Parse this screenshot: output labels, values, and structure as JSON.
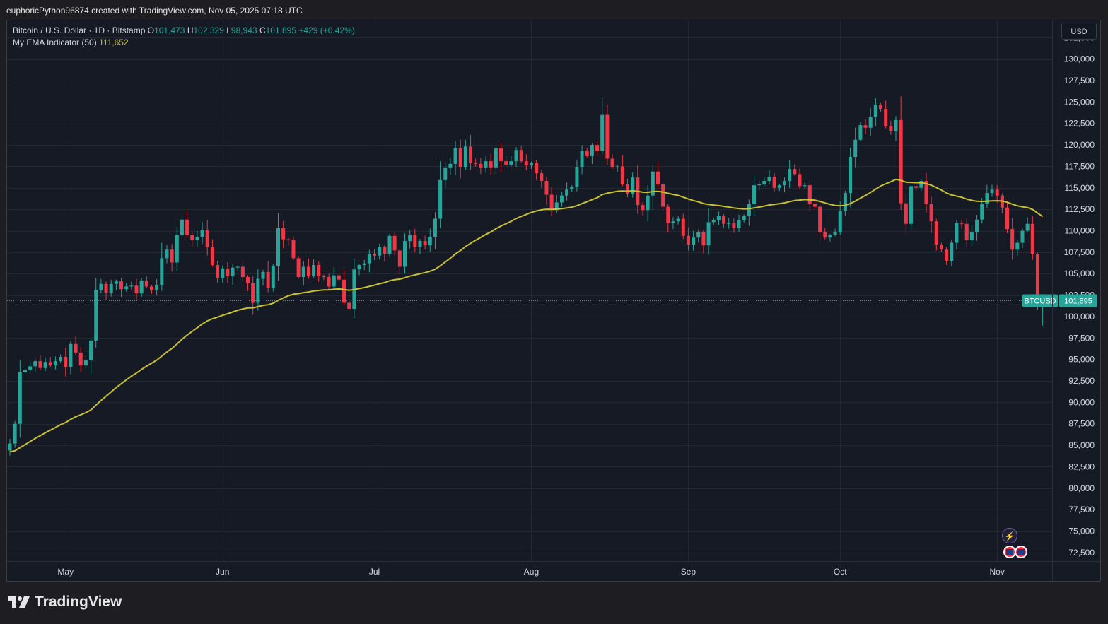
{
  "header": {
    "attribution": "euphoricPython96874 created with TradingView.com, Nov 05, 2025 07:18 UTC"
  },
  "legend": {
    "symbol": "Bitcoin / U.S. Dollar · 1D · Bitstamp",
    "o_label": "O",
    "open": "101,473",
    "h_label": "H",
    "high": "102,329",
    "l_label": "L",
    "low": "98,943",
    "c_label": "C",
    "close": "101,895",
    "change": "+429 (+0.42%)",
    "indicator_label": "My EMA Indicator (50)",
    "indicator_value": "111,652"
  },
  "currency": "USD",
  "footer": {
    "brand": "TradingView"
  },
  "colors": {
    "up": "#26a69a",
    "down": "#f23645",
    "ema": "#c9c12b",
    "background": "#161a25",
    "grid": "#242832",
    "text": "#d1d4dc"
  },
  "chart_data": {
    "type": "candlestick",
    "ylim": [
      71500,
      134500
    ],
    "y_ticks": [
      "72,500",
      "75,000",
      "77,500",
      "80,000",
      "82,500",
      "85,000",
      "87,500",
      "90,000",
      "92,500",
      "95,000",
      "97,500",
      "100,000",
      "102,500",
      "105,000",
      "107,500",
      "110,000",
      "112,500",
      "115,000",
      "117,500",
      "120,000",
      "122,500",
      "125,000",
      "127,500",
      "130,000",
      "132,500"
    ],
    "x_ticks": [
      {
        "label": "May",
        "date": "2025-05-01"
      },
      {
        "label": "Jun",
        "date": "2025-06-01"
      },
      {
        "label": "Jul",
        "date": "2025-07-01"
      },
      {
        "label": "Aug",
        "date": "2025-08-01"
      },
      {
        "label": "Sep",
        "date": "2025-09-01"
      },
      {
        "label": "Oct",
        "date": "2025-10-01"
      },
      {
        "label": "Nov",
        "date": "2025-11-01"
      }
    ],
    "first_date": "2025-04-20",
    "closes": [
      85200,
      87500,
      93500,
      93800,
      94200,
      94800,
      94000,
      94700,
      94300,
      94800,
      95300,
      94100,
      96800,
      95800,
      94300,
      94900,
      97200,
      103100,
      103800,
      102800,
      103800,
      104100,
      103200,
      103500,
      103600,
      102700,
      104200,
      103500,
      103100,
      103700,
      106800,
      107800,
      106300,
      109500,
      111300,
      109500,
      108900,
      109300,
      110100,
      108100,
      106000,
      104500,
      105600,
      104700,
      105700,
      105800,
      104600,
      103900,
      101600,
      104400,
      105200,
      103300,
      105900,
      110300,
      109000,
      108900,
      106800,
      104600,
      105800,
      104700,
      106000,
      104700,
      104600,
      103500,
      104800,
      104300,
      101600,
      100900,
      105500,
      106000,
      106200,
      107300,
      107100,
      108100,
      107300,
      109400,
      107700,
      105800,
      108800,
      109500,
      108100,
      108800,
      108300,
      109300,
      111400,
      115900,
      117300,
      117800,
      119600,
      117400,
      119800,
      117900,
      117800,
      117300,
      118100,
      117300,
      119600,
      118100,
      117700,
      118100,
      119400,
      118100,
      117600,
      117900,
      116700,
      115800,
      114200,
      112400,
      113300,
      114100,
      114800,
      115100,
      117400,
      119300,
      118700,
      120000,
      119300,
      123500,
      118400,
      117400,
      117500,
      115400,
      114300,
      116200,
      113000,
      112400,
      114100,
      116900,
      115400,
      112800,
      110900,
      111100,
      111400,
      109400,
      108400,
      109200,
      109800,
      108300,
      111000,
      111200,
      111700,
      110800,
      110900,
      110300,
      111200,
      111700,
      113100,
      115300,
      115400,
      115800,
      116300,
      115000,
      115300,
      115800,
      117200,
      116600,
      115200,
      115300,
      113100,
      112800,
      109800,
      109200,
      109500,
      109800,
      112300,
      114400,
      118600,
      120600,
      122300,
      122000,
      123300,
      124700,
      124200,
      122200,
      121600,
      122900,
      113200,
      110800,
      115200,
      115000,
      115800,
      113100,
      111100,
      108400,
      107800,
      106500,
      108600,
      110900,
      110800,
      108900,
      109800,
      111300,
      113100,
      114400,
      114800,
      114100,
      112700,
      110200,
      107800,
      108600,
      110000,
      110800,
      107300,
      102100,
      101895
    ],
    "ema_period": 50,
    "ema_last": 111652,
    "last_price_label": "BTCUSD",
    "last_price": "101,895",
    "grid": true
  }
}
